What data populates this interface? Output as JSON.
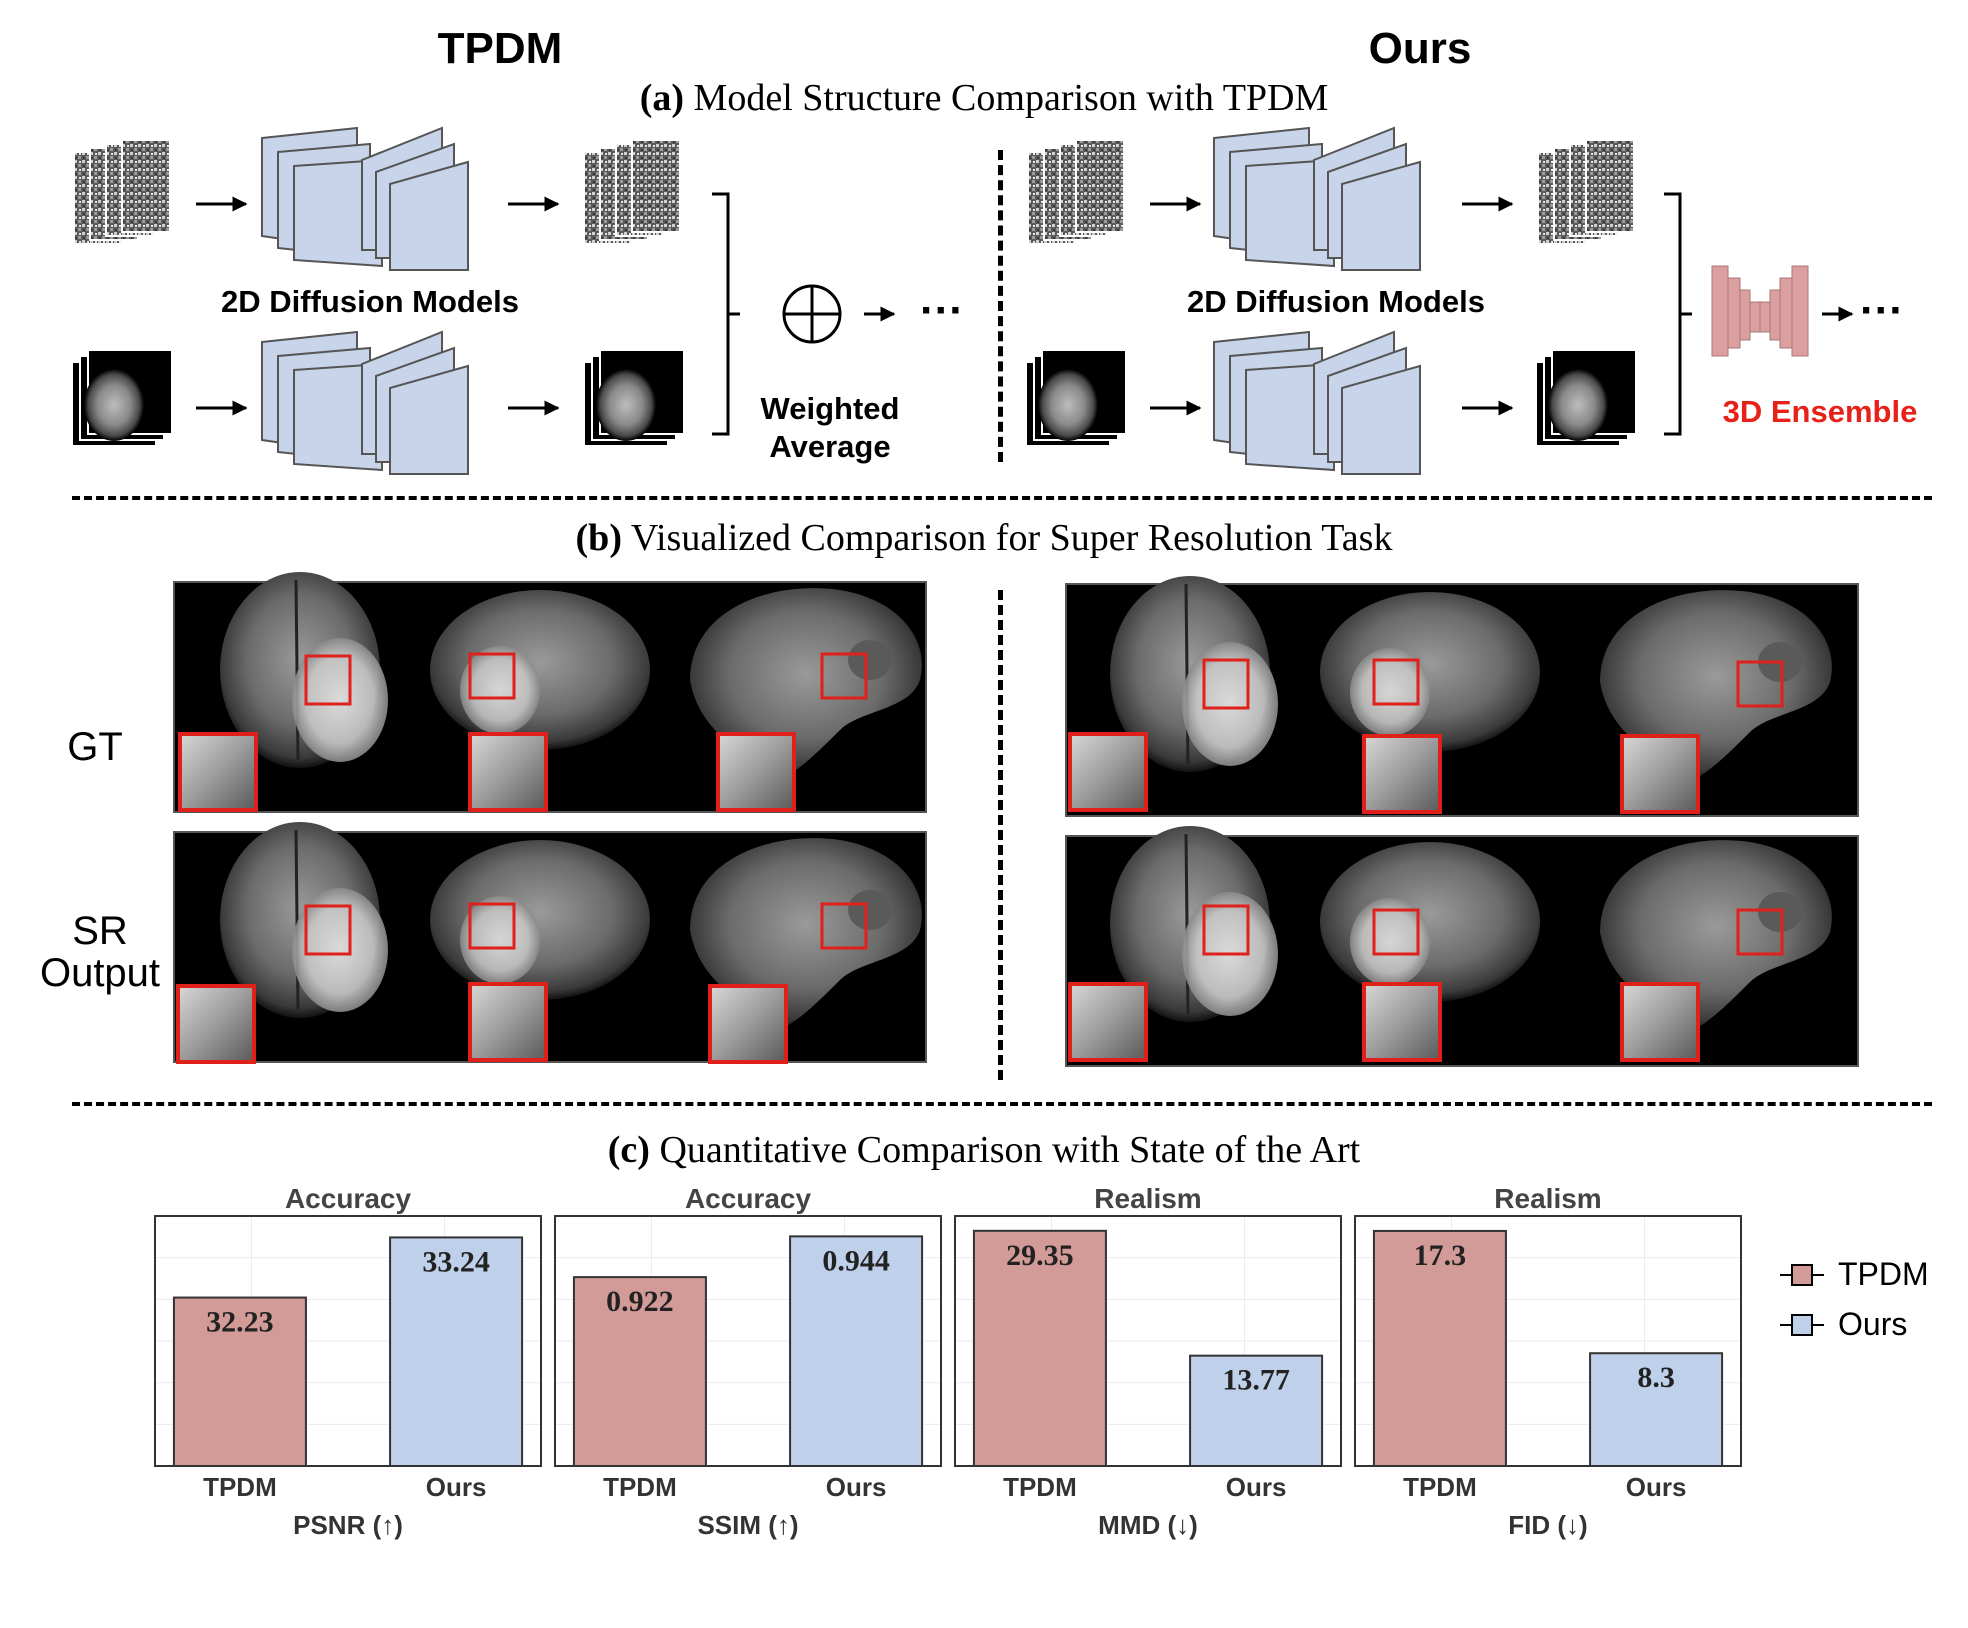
{
  "section_a": {
    "title_prefix": "(a)",
    "title": "Model Structure Comparison with TPDM",
    "left_heading": "TPDM",
    "right_heading": "Ours",
    "left_models_label": "2D Diffusion Models",
    "right_models_label": "2D Diffusion Models",
    "weighted_line1": "Weighted",
    "weighted_line2": "Average",
    "ensemble_label": "3D Ensemble",
    "ellipsis": "···",
    "colors": {
      "unet": "#c7d4ea",
      "ensemble": "#dc9f9f",
      "ensemble_text": "#e8201a"
    }
  },
  "section_b": {
    "title_prefix": "(b)",
    "title": "Visualized Comparison for Super Resolution Task",
    "row_gt": "GT",
    "row_sr_line1": "SR",
    "row_sr_line2": "Output"
  },
  "section_c": {
    "title_prefix": "(c)",
    "title": "Quantitative Comparison with State of the Art"
  },
  "legend": [
    {
      "name": "TPDM",
      "color": "#d39b98"
    },
    {
      "name": "Ours",
      "color": "#bfd0ea"
    }
  ],
  "chart_data": [
    {
      "type": "bar",
      "title": "Accuracy",
      "xlabel": "PSNR (↑)",
      "categories": [
        "TPDM",
        "Ours"
      ],
      "values": [
        32.23,
        33.24
      ],
      "labels": [
        "32.23",
        "33.24"
      ],
      "colors": [
        "#d39b98",
        "#bfd0ea"
      ],
      "ylim": [
        29.4,
        33.6
      ]
    },
    {
      "type": "bar",
      "title": "Accuracy",
      "xlabel": "SSIM (↑)",
      "categories": [
        "TPDM",
        "Ours"
      ],
      "values": [
        0.922,
        0.944
      ],
      "labels": [
        "0.922",
        "0.944"
      ],
      "colors": [
        "#d39b98",
        "#bfd0ea"
      ],
      "ylim": [
        0.82,
        0.955
      ]
    },
    {
      "type": "bar",
      "title": "Realism",
      "xlabel": "MMD (↓)",
      "categories": [
        "TPDM",
        "Ours"
      ],
      "values": [
        29.35,
        13.77
      ],
      "labels": [
        "29.35",
        "13.77"
      ],
      "colors": [
        "#d39b98",
        "#bfd0ea"
      ],
      "ylim": [
        0,
        31.2
      ]
    },
    {
      "type": "bar",
      "title": "Realism",
      "xlabel": "FID (↓)",
      "categories": [
        "TPDM",
        "Ours"
      ],
      "values": [
        17.3,
        8.3
      ],
      "labels": [
        "17.3",
        "8.3"
      ],
      "colors": [
        "#d39b98",
        "#bfd0ea"
      ],
      "ylim": [
        0,
        18.4
      ]
    }
  ]
}
